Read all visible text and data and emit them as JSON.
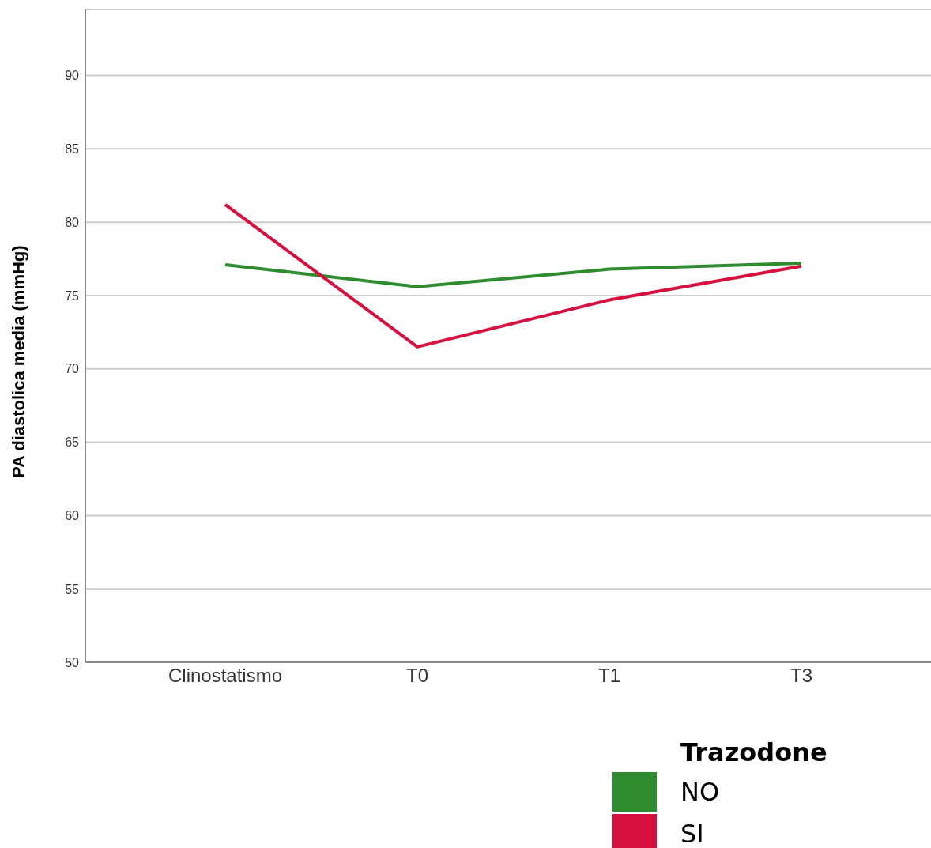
{
  "chart_data": {
    "type": "line",
    "ylabel": "PA diastolica media (mmHg)",
    "legend_title": "Trazodone",
    "categories": [
      "Clinostatismo",
      "T0",
      "T1",
      "T3"
    ],
    "series": [
      {
        "name": "NO",
        "color": "#2e8b2e",
        "values": [
          77.1,
          75.6,
          76.8,
          77.2
        ]
      },
      {
        "name": "SI",
        "color": "#d6103f",
        "values": [
          81.2,
          71.5,
          74.7,
          77.0
        ]
      }
    ],
    "ylim": [
      50,
      94.5
    ],
    "yticks": [
      50,
      55,
      60,
      65,
      70,
      75,
      80,
      85,
      90
    ],
    "grid": "y",
    "legend": "bottom right",
    "marker": "none",
    "line_style": "solid"
  }
}
